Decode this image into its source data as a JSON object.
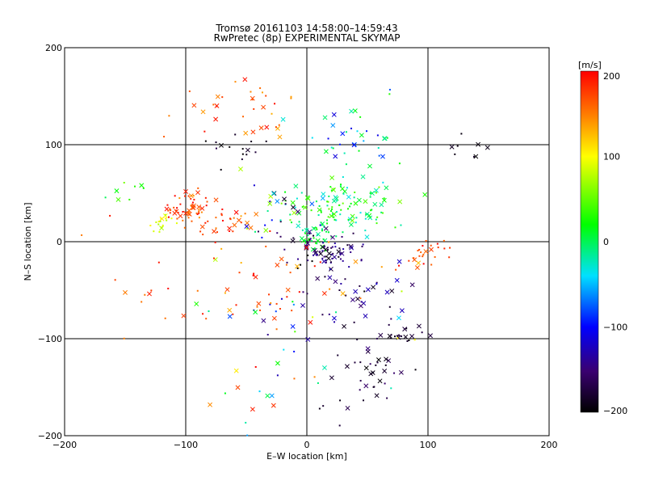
{
  "chart_data": {
    "type": "scatter",
    "title": "Tromsø 20161103 14:58:00–14:59:43",
    "subtitle": "RwPretec (8p) EXPERIMENTAL SKYMAP",
    "xlabel": "E–W location [km]",
    "ylabel": "N–S location [km]",
    "xlim": [
      -200,
      200
    ],
    "ylim": [
      -200,
      200
    ],
    "x_ticks": [
      -200,
      -100,
      0,
      100,
      200
    ],
    "y_ticks": [
      -200,
      -100,
      0,
      100,
      200
    ],
    "x_tick_labels": [
      "−200",
      "−100",
      "0",
      "100",
      "200"
    ],
    "y_tick_labels": [
      "−200",
      "−100",
      "0",
      "100",
      "200"
    ],
    "grid": true,
    "colorbar": {
      "label": "[m/s]",
      "range": [
        -200,
        200
      ],
      "ticks": [
        -200,
        -100,
        0,
        100,
        200
      ],
      "tick_labels": [
        "−200",
        "−100",
        "0",
        "100",
        "200"
      ],
      "colormap": "rainbow (black → purple → blue → cyan → green → yellow → orange → red)"
    },
    "markers": "cross (x) for larger detections, small points for the rest",
    "clusters": [
      {
        "x": -98,
        "y": 35,
        "sx": 10,
        "sy": 8,
        "n": 55,
        "vmin": 140,
        "vmax": 200
      },
      {
        "x": -118,
        "y": 22,
        "sx": 6,
        "sy": 7,
        "n": 18,
        "vmin": 70,
        "vmax": 110
      },
      {
        "x": -70,
        "y": 20,
        "sx": 14,
        "sy": 8,
        "n": 30,
        "vmin": 150,
        "vmax": 200
      },
      {
        "x": -55,
        "y": 135,
        "sx": 30,
        "sy": 20,
        "n": 35,
        "vmin": 130,
        "vmax": 200
      },
      {
        "x": 30,
        "y": 40,
        "sx": 25,
        "sy": 15,
        "n": 110,
        "vmin": -40,
        "vmax": 60
      },
      {
        "x": 5,
        "y": 5,
        "sx": 8,
        "sy": 8,
        "n": 40,
        "vmin": -20,
        "vmax": 30
      },
      {
        "x": 15,
        "y": -10,
        "sx": 14,
        "sy": 9,
        "n": 75,
        "vmin": -200,
        "vmax": -140
      },
      {
        "x": 35,
        "y": -50,
        "sx": 25,
        "sy": 18,
        "n": 40,
        "vmin": -200,
        "vmax": -120
      },
      {
        "x": 50,
        "y": -125,
        "sx": 18,
        "sy": 22,
        "n": 45,
        "vmin": -200,
        "vmax": -170
      },
      {
        "x": 80,
        "y": -95,
        "sx": 8,
        "sy": 6,
        "n": 15,
        "vmin": -200,
        "vmax": -180
      },
      {
        "x": 100,
        "y": -15,
        "sx": 12,
        "sy": 8,
        "n": 25,
        "vmin": 160,
        "vmax": 200
      },
      {
        "x": 40,
        "y": 110,
        "sx": 25,
        "sy": 18,
        "n": 35,
        "vmin": -120,
        "vmax": 40
      },
      {
        "x": -40,
        "y": -55,
        "sx": 35,
        "sy": 30,
        "n": 45,
        "vmin": 130,
        "vmax": 200
      },
      {
        "x": -25,
        "y": 30,
        "sx": 20,
        "sy": 18,
        "n": 35,
        "vmin": -200,
        "vmax": 80
      },
      {
        "x": -60,
        "y": 95,
        "sx": 12,
        "sy": 10,
        "n": 15,
        "vmin": -200,
        "vmax": -180
      },
      {
        "x": 140,
        "y": 100,
        "sx": 15,
        "sy": 10,
        "n": 8,
        "vmin": -200,
        "vmax": -190
      },
      {
        "x": -145,
        "y": 55,
        "sx": 8,
        "sy": 8,
        "n": 8,
        "vmin": 0,
        "vmax": 60
      },
      {
        "x": 0,
        "y": -80,
        "sx": 50,
        "sy": 40,
        "n": 35,
        "vmin": -200,
        "vmax": 200
      },
      {
        "x": -140,
        "y": -60,
        "sx": 30,
        "sy": 40,
        "n": 12,
        "vmin": 150,
        "vmax": 200
      },
      {
        "x": -50,
        "y": -170,
        "sx": 30,
        "sy": 20,
        "n": 12,
        "vmin": -60,
        "vmax": 200
      }
    ]
  }
}
